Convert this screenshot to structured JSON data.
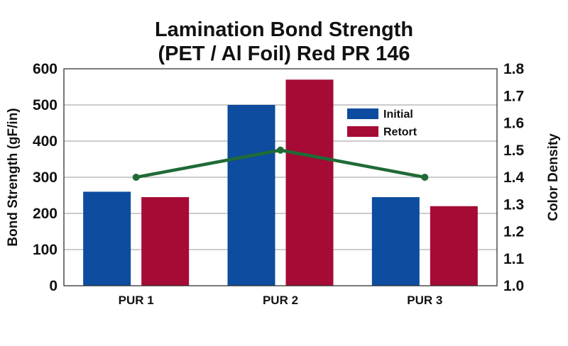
{
  "chart_data": {
    "type": "bar",
    "title_lines": [
      "Lamination Bond Strength",
      "(PET / Al Foil) Red PR 146"
    ],
    "categories": [
      "PUR 1",
      "PUR 2",
      "PUR 3"
    ],
    "series": [
      {
        "name": "Initial",
        "values": [
          260,
          500,
          245
        ],
        "color": "#0d4c9e"
      },
      {
        "name": "Retort",
        "values": [
          245,
          570,
          220
        ],
        "color": "#a50b34"
      }
    ],
    "line_series": {
      "values": [
        1.4,
        1.5,
        1.4
      ],
      "color": "#1f6b36"
    },
    "ylabel": "Bond Strength (gF/in)",
    "ylabel_right": "Color Density",
    "ylim": [
      0,
      600
    ],
    "y_ticks": [
      "0",
      "100",
      "200",
      "300",
      "400",
      "500",
      "600"
    ],
    "ylim_right": [
      1.0,
      1.8
    ],
    "y_ticks_right": [
      "1.0",
      "1.1",
      "1.2",
      "1.3",
      "1.4",
      "1.5",
      "1.6",
      "1.7",
      "1.8"
    ],
    "grid": true,
    "legend_position": "upper-right"
  }
}
